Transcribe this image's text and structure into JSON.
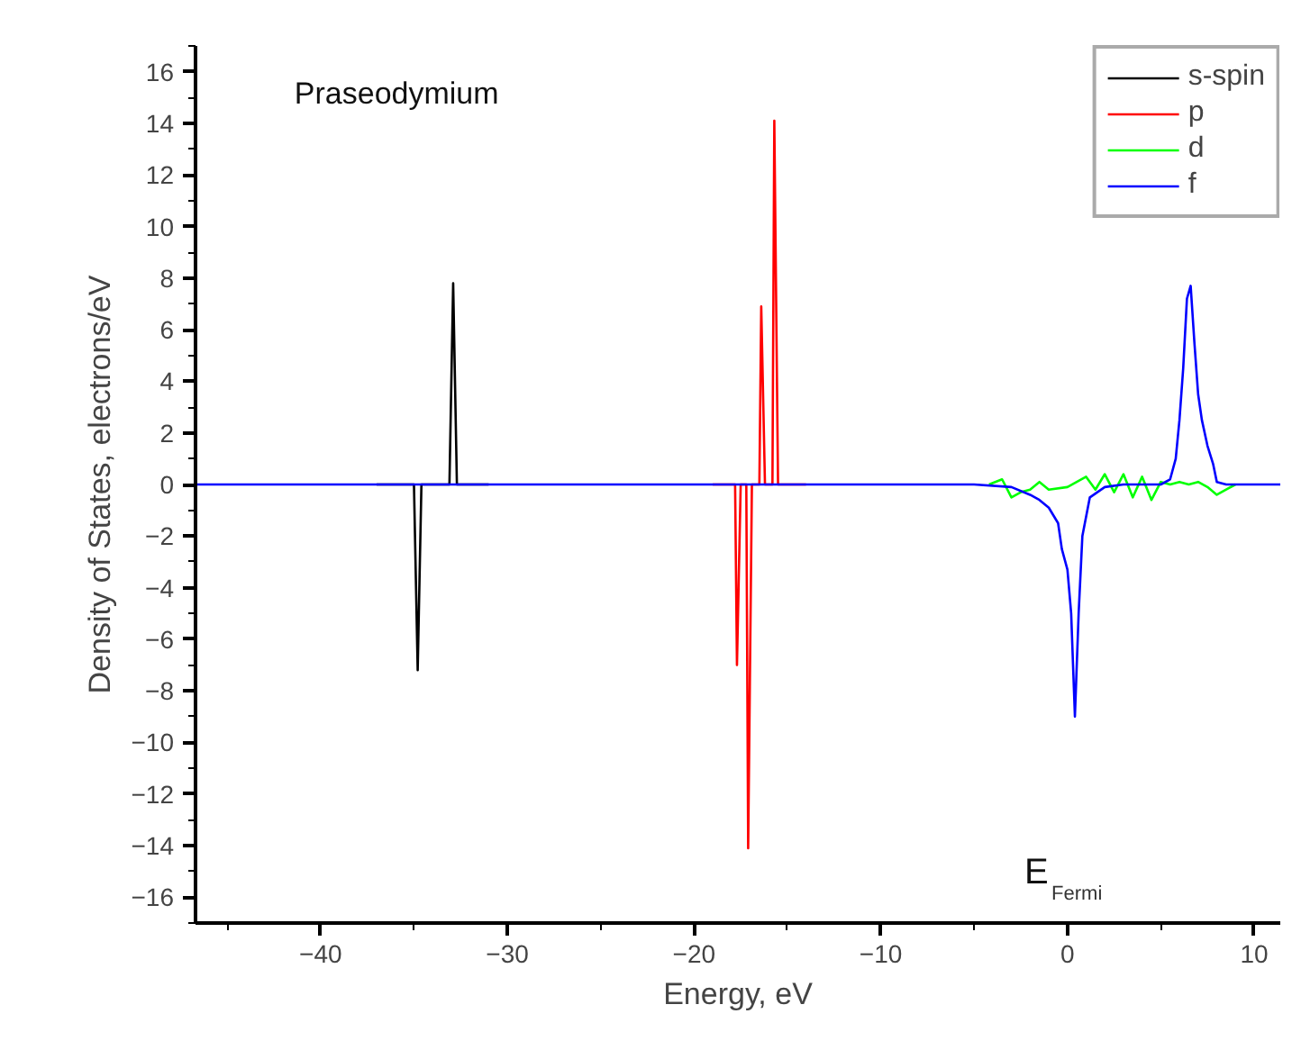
{
  "chart_data": {
    "type": "line",
    "xlabel": "Energy, eV",
    "ylabel": "Density of States, electrons/eV",
    "xlim": [
      -46.7,
      11.4
    ],
    "ylim": [
      -17,
      17
    ],
    "xticks": [
      -40,
      -30,
      -20,
      -10,
      0,
      10
    ],
    "yticks": [
      -16,
      -14,
      -12,
      -10,
      -8,
      -6,
      -4,
      -2,
      0,
      2,
      4,
      6,
      8,
      10,
      12,
      14,
      16
    ],
    "grid": false,
    "legend": "top right",
    "marker": "none",
    "line_style": "solid",
    "annotations": [
      "Praseodymium",
      "E$_{Fermi}$"
    ],
    "series": [
      {
        "name": "s-spin",
        "color": "#000000",
        "x": [
          -37,
          -35.0,
          -34.8,
          -34.6,
          -33.1,
          -32.9,
          -32.7,
          -31
        ],
        "values": [
          0,
          0,
          -7.2,
          0,
          0,
          7.8,
          0,
          0
        ]
      },
      {
        "name": "p",
        "color": "#ff0000",
        "x": [
          -19,
          -17.8,
          -17.7,
          -17.5,
          -17.2,
          -17.1,
          -16.9,
          -16.5,
          -16.4,
          -16.2,
          -15.8,
          -15.7,
          -15.5,
          -14
        ],
        "values": [
          0,
          0,
          -7.0,
          0,
          0,
          -14.1,
          0,
          0,
          6.9,
          0,
          0,
          14.1,
          0,
          0
        ]
      },
      {
        "name": "d",
        "color": "#00ff00",
        "x": [
          -4.2,
          -3.5,
          -3.0,
          -2.5,
          -2.0,
          -1.5,
          -1.0,
          0.0,
          0.5,
          1.0,
          1.5,
          2.0,
          2.5,
          3.0,
          3.5,
          4.0,
          4.5,
          5.0,
          5.5,
          6.0,
          6.5,
          7.0,
          7.5,
          8.0,
          8.5,
          9.0
        ],
        "values": [
          0,
          0.2,
          -0.5,
          -0.3,
          -0.2,
          0.1,
          -0.2,
          -0.1,
          0.1,
          0.3,
          -0.2,
          0.4,
          -0.3,
          0.4,
          -0.5,
          0.3,
          -0.6,
          0.1,
          0.0,
          0.1,
          0.0,
          0.1,
          -0.1,
          -0.4,
          -0.2,
          0
        ]
      },
      {
        "name": "f",
        "color": "#0000ff",
        "x": [
          -46.7,
          -5,
          -3,
          -2,
          -1.5,
          -1,
          -0.5,
          -0.3,
          0,
          0.2,
          0.4,
          0.6,
          0.8,
          1.2,
          2,
          3,
          5,
          5.5,
          5.8,
          6.0,
          6.2,
          6.4,
          6.6,
          6.8,
          7.0,
          7.2,
          7.5,
          7.8,
          8.0,
          8.5,
          11.4
        ],
        "values": [
          0,
          0,
          -0.1,
          -0.4,
          -0.6,
          -0.9,
          -1.5,
          -2.5,
          -3.3,
          -5,
          -9.0,
          -5,
          -2.0,
          -0.5,
          -0.1,
          0,
          0,
          0.2,
          1,
          2.5,
          4.5,
          7.2,
          7.7,
          5.5,
          3.5,
          2.5,
          1.5,
          0.8,
          0.1,
          0,
          0
        ]
      }
    ]
  }
}
